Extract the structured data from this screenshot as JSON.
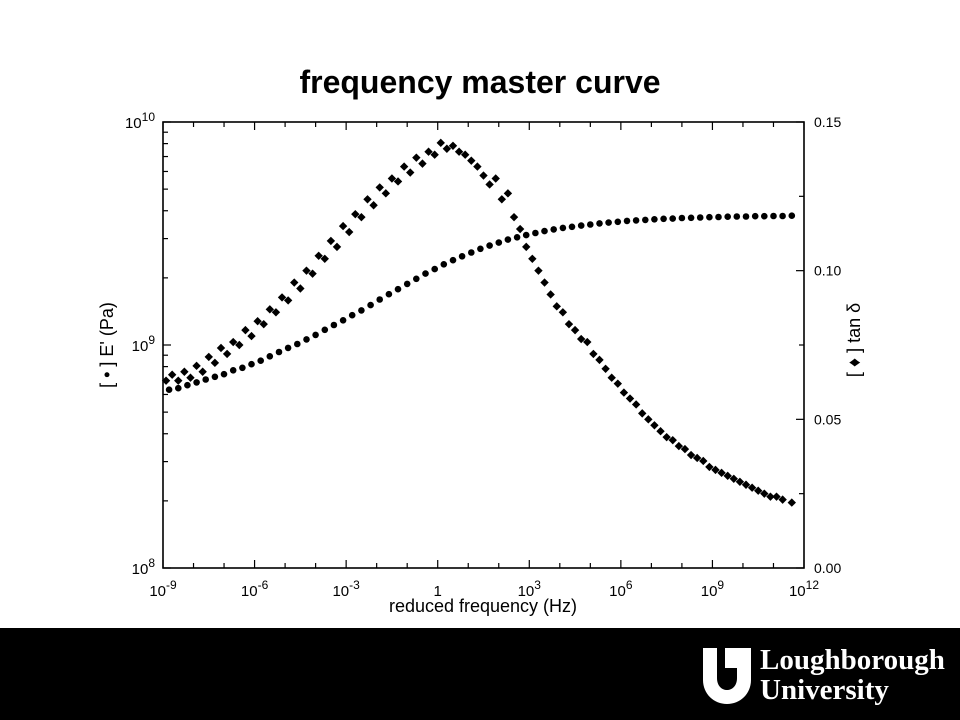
{
  "slide": {
    "title": "frequency master curve",
    "footer": {
      "logo_line1": "Loughborough",
      "logo_line2": "University",
      "background": "#000000"
    }
  },
  "chart_data": {
    "type": "scatter",
    "title": "frequency master curve",
    "xlabel": "reduced frequency (Hz)",
    "ylabel_left": "[ • ] E' (Pa)",
    "ylabel_right": "[ ♦ ] tan δ",
    "x_scale": "log",
    "xlim": [
      1e-09,
      1000000000000.0
    ],
    "x_ticks": [
      {
        "base": "10",
        "exp": "-9"
      },
      {
        "base": "10",
        "exp": "-6"
      },
      {
        "base": "10",
        "exp": "-3"
      },
      {
        "base": "1",
        "exp": ""
      },
      {
        "base": "10",
        "exp": "3"
      },
      {
        "base": "10",
        "exp": "6"
      },
      {
        "base": "10",
        "exp": "9"
      },
      {
        "base": "10",
        "exp": "12"
      }
    ],
    "y_left_scale": "log",
    "y_left_lim": [
      100000000.0,
      10000000000.0
    ],
    "y_left_ticks": [
      {
        "base": "10",
        "exp": "8"
      },
      {
        "base": "10",
        "exp": "9"
      },
      {
        "base": "10",
        "exp": "10"
      }
    ],
    "y_right_lim": [
      0.0,
      0.15
    ],
    "y_right_ticks": [
      "0.00",
      "0.05",
      "0.10",
      "0.15"
    ],
    "grid": false,
    "legend": "none",
    "series": [
      {
        "axis": "left",
        "marker": "circle",
        "x_log10": [
          -8.8,
          -8.5,
          -8.2,
          -7.9,
          -7.6,
          -7.3,
          -7.0,
          -6.7,
          -6.4,
          -6.1,
          -5.8,
          -5.5,
          -5.2,
          -4.9,
          -4.6,
          -4.3,
          -4.0,
          -3.7,
          -3.4,
          -3.1,
          -2.8,
          -2.5,
          -2.2,
          -1.9,
          -1.6,
          -1.3,
          -1.0,
          -0.7,
          -0.4,
          -0.1,
          0.2,
          0.5,
          0.8,
          1.1,
          1.4,
          1.7,
          2.0,
          2.3,
          2.6,
          2.9,
          3.2,
          3.5,
          3.8,
          4.1,
          4.4,
          4.7,
          5.0,
          5.3,
          5.6,
          5.9,
          6.2,
          6.5,
          6.8,
          7.1,
          7.4,
          7.7,
          8.0,
          8.3,
          8.6,
          8.9,
          9.2,
          9.5,
          9.8,
          10.1,
          10.4,
          10.7,
          11.0,
          11.3,
          11.6
        ],
        "y": [
          630000000.0,
          640000000.0,
          660000000.0,
          680000000.0,
          700000000.0,
          720000000.0,
          740000000.0,
          770000000.0,
          790000000.0,
          820000000.0,
          850000000.0,
          890000000.0,
          930000000.0,
          970000000.0,
          1010000000.0,
          1060000000.0,
          1110000000.0,
          1170000000.0,
          1230000000.0,
          1290000000.0,
          1360000000.0,
          1430000000.0,
          1510000000.0,
          1600000000.0,
          1690000000.0,
          1780000000.0,
          1880000000.0,
          1980000000.0,
          2090000000.0,
          2190000000.0,
          2300000000.0,
          2400000000.0,
          2500000000.0,
          2600000000.0,
          2700000000.0,
          2790000000.0,
          2880000000.0,
          2970000000.0,
          3040000000.0,
          3110000000.0,
          3180000000.0,
          3240000000.0,
          3300000000.0,
          3350000000.0,
          3390000000.0,
          3430000000.0,
          3470000000.0,
          3510000000.0,
          3540000000.0,
          3570000000.0,
          3600000000.0,
          3620000000.0,
          3640000000.0,
          3660000000.0,
          3680000000.0,
          3690000000.0,
          3710000000.0,
          3720000000.0,
          3730000000.0,
          3740000000.0,
          3750000000.0,
          3760000000.0,
          3770000000.0,
          3770000000.0,
          3780000000.0,
          3780000000.0,
          3790000000.0,
          3790000000.0,
          3800000000.0
        ]
      },
      {
        "axis": "right",
        "marker": "diamond",
        "x_log10": [
          -8.9,
          -8.7,
          -8.5,
          -8.3,
          -8.1,
          -7.9,
          -7.7,
          -7.5,
          -7.3,
          -7.1,
          -6.9,
          -6.7,
          -6.5,
          -6.3,
          -6.1,
          -5.9,
          -5.7,
          -5.5,
          -5.3,
          -5.1,
          -4.9,
          -4.7,
          -4.5,
          -4.3,
          -4.1,
          -3.9,
          -3.7,
          -3.5,
          -3.3,
          -3.1,
          -2.9,
          -2.7,
          -2.5,
          -2.3,
          -2.1,
          -1.9,
          -1.7,
          -1.5,
          -1.3,
          -1.1,
          -0.9,
          -0.7,
          -0.5,
          -0.3,
          -0.1,
          0.1,
          0.3,
          0.5,
          0.7,
          0.9,
          1.1,
          1.3,
          1.5,
          1.7,
          1.9,
          2.1,
          2.3,
          2.5,
          2.7,
          2.9,
          3.1,
          3.3,
          3.5,
          3.7,
          3.9,
          4.1,
          4.3,
          4.5,
          4.7,
          4.9,
          5.1,
          5.3,
          5.5,
          5.7,
          5.9,
          6.1,
          6.3,
          6.5,
          6.7,
          6.9,
          7.1,
          7.3,
          7.5,
          7.7,
          7.9,
          8.1,
          8.3,
          8.5,
          8.7,
          8.9,
          9.1,
          9.3,
          9.5,
          9.7,
          9.9,
          10.1,
          10.3,
          10.5,
          10.7,
          10.9,
          11.1,
          11.3,
          11.6
        ],
        "y": [
          0.063,
          0.065,
          0.063,
          0.066,
          0.064,
          0.068,
          0.066,
          0.071,
          0.069,
          0.074,
          0.072,
          0.076,
          0.075,
          0.08,
          0.078,
          0.083,
          0.082,
          0.087,
          0.086,
          0.091,
          0.09,
          0.096,
          0.094,
          0.1,
          0.099,
          0.105,
          0.104,
          0.11,
          0.108,
          0.115,
          0.113,
          0.119,
          0.118,
          0.124,
          0.122,
          0.128,
          0.126,
          0.131,
          0.13,
          0.135,
          0.133,
          0.138,
          0.136,
          0.14,
          0.139,
          0.143,
          0.141,
          0.142,
          0.14,
          0.139,
          0.137,
          0.135,
          0.132,
          0.129,
          0.131,
          0.124,
          0.126,
          0.118,
          0.114,
          0.108,
          0.104,
          0.1,
          0.096,
          0.092,
          0.088,
          0.086,
          0.082,
          0.08,
          0.077,
          0.076,
          0.072,
          0.07,
          0.067,
          0.064,
          0.062,
          0.059,
          0.057,
          0.055,
          0.052,
          0.05,
          0.048,
          0.046,
          0.044,
          0.043,
          0.041,
          0.04,
          0.038,
          0.037,
          0.036,
          0.034,
          0.033,
          0.032,
          0.031,
          0.03,
          0.029,
          0.028,
          0.027,
          0.026,
          0.025,
          0.024,
          0.024,
          0.023,
          0.022
        ]
      }
    ]
  }
}
